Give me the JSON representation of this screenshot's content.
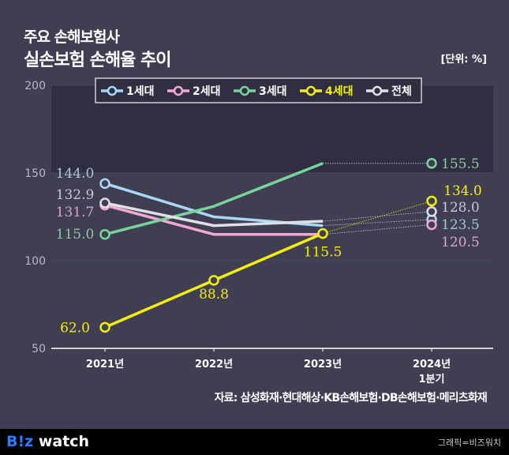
{
  "header": {
    "subtitle": "주요 손해보험사",
    "title": "실손보험 손해율 추이",
    "unit": "[단위: %]"
  },
  "chart_data": {
    "type": "line",
    "categories": [
      "2021년",
      "2022년",
      "2023년",
      "2024년 1분기"
    ],
    "category_lines": [
      [
        "2021년"
      ],
      [
        "2022년"
      ],
      [
        "2023년"
      ],
      [
        "2024년",
        "1분기"
      ]
    ],
    "ylim": [
      50,
      200
    ],
    "yticks": [
      "50",
      "100",
      "150",
      "200"
    ],
    "legend_position": "top",
    "series": [
      {
        "name": "1세대",
        "color": "#a9d8f5",
        "values": [
          144.0,
          125,
          120,
          123.5
        ],
        "labels": [
          "144.0",
          null,
          null,
          "123.5"
        ],
        "label_color": "#a9c4d9"
      },
      {
        "name": "2세대",
        "color": "#f5a8cf",
        "values": [
          131.7,
          115,
          115,
          120.5
        ],
        "labels": [
          "131.7",
          null,
          null,
          "120.5"
        ],
        "label_color": "#d9a8c4"
      },
      {
        "name": "3세대",
        "color": "#79d49a",
        "values": [
          115.0,
          131,
          155.5,
          155.5
        ],
        "labels": [
          "115.0",
          null,
          null,
          "155.5"
        ],
        "label_color": "#8cc8a0"
      },
      {
        "name": "4세대",
        "color": "#f5f000",
        "values": [
          62.0,
          88.8,
          115.5,
          134.0
        ],
        "labels": [
          "62.0",
          "88.8",
          "115.5",
          "134.0"
        ],
        "label_color": "#f5f000"
      },
      {
        "name": "전체",
        "color": "#e0e0e6",
        "values": [
          132.9,
          120,
          122.5,
          128.0
        ],
        "labels": [
          "132.9",
          null,
          null,
          "128.0"
        ],
        "label_color": "#c8c8d2"
      }
    ]
  },
  "source": "자료: 삼성화재·현대해상·KB손해보험·DB손해보험·메리츠화재",
  "footer": {
    "logo_b": "B!z",
    "logo_w": " watch",
    "credit": "그래픽=비즈워치"
  }
}
